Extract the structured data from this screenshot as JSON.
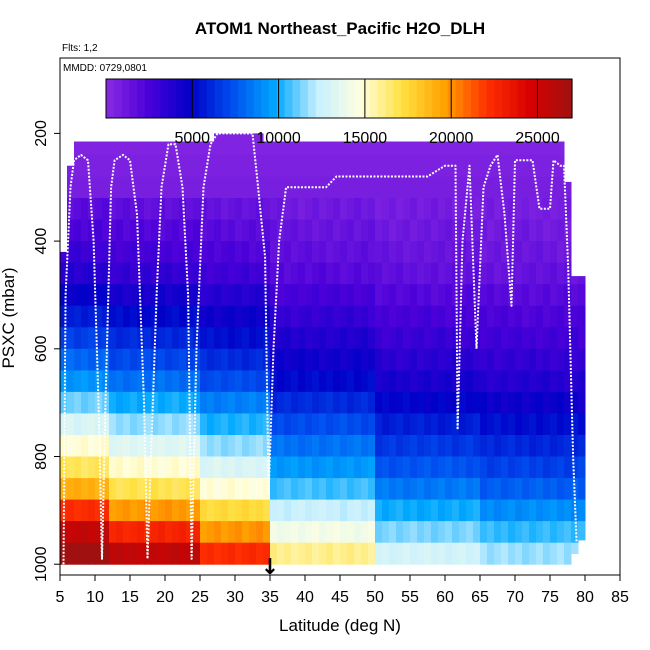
{
  "chart_data": {
    "type": "heatmap",
    "title": "ATOM1 Northeast_Pacific H2O_DLH",
    "flights_label": "Flts: 1,2",
    "dates_label": "MMDD: 0729,0801",
    "xlabel": "Latitude (deg N)",
    "ylabel": "PSXC (mbar)",
    "xlim": [
      5,
      85
    ],
    "ylim": [
      1020,
      60
    ],
    "x_ticks": [
      "5",
      "10",
      "15",
      "20",
      "25",
      "30",
      "35",
      "40",
      "45",
      "50",
      "55",
      "60",
      "65",
      "70",
      "75",
      "80",
      "85"
    ],
    "y_ticks": [
      "200",
      "400",
      "600",
      "800",
      "1000"
    ],
    "colorbar": {
      "range": [
        0,
        27000
      ],
      "ticks": [
        "5000",
        "10000",
        "15000",
        "20000",
        "25000"
      ],
      "colors": [
        "#8a2be2",
        "#4b00d9",
        "#0000c8",
        "#0050f0",
        "#00a8ff",
        "#c8f0ff",
        "#ffffe0",
        "#ffe040",
        "#ffa000",
        "#ff3000",
        "#d80000",
        "#a01010"
      ]
    },
    "marker": {
      "label": "↓",
      "latitude": 35
    },
    "flight_track": [
      [
        5.5,
        1000
      ],
      [
        5.8,
        500
      ],
      [
        6.5,
        300
      ],
      [
        7,
        250
      ],
      [
        8,
        240
      ],
      [
        9,
        250
      ],
      [
        9.8,
        400
      ],
      [
        10.5,
        700
      ],
      [
        11,
        990
      ],
      [
        11.5,
        700
      ],
      [
        12.3,
        300
      ],
      [
        12.8,
        250
      ],
      [
        14,
        240
      ],
      [
        15,
        250
      ],
      [
        16,
        350
      ],
      [
        17,
        700
      ],
      [
        17.5,
        990
      ],
      [
        18,
        800
      ],
      [
        18.8,
        500
      ],
      [
        19.5,
        300
      ],
      [
        20.5,
        220
      ],
      [
        21.5,
        220
      ],
      [
        22.5,
        300
      ],
      [
        23.3,
        500
      ],
      [
        23.8,
        990
      ],
      [
        24.5,
        600
      ],
      [
        25.5,
        300
      ],
      [
        26.5,
        220
      ],
      [
        27.5,
        200
      ],
      [
        30,
        200
      ],
      [
        32.5,
        200
      ],
      [
        33.3,
        300
      ],
      [
        34.3,
        430
      ],
      [
        34.8,
        870
      ],
      [
        35.5,
        600
      ],
      [
        36.3,
        400
      ],
      [
        37.3,
        300
      ],
      [
        40,
        300
      ],
      [
        43,
        300
      ],
      [
        44.5,
        280
      ],
      [
        50,
        280
      ],
      [
        55,
        280
      ],
      [
        57.5,
        280
      ],
      [
        60,
        260
      ],
      [
        61.5,
        260
      ],
      [
        61.8,
        750
      ],
      [
        62.5,
        400
      ],
      [
        63.5,
        260
      ],
      [
        64.5,
        600
      ],
      [
        65.5,
        300
      ],
      [
        66.5,
        260
      ],
      [
        67.5,
        240
      ],
      [
        68.5,
        350
      ],
      [
        69.5,
        520
      ],
      [
        70,
        250
      ],
      [
        71,
        250
      ],
      [
        72.5,
        250
      ],
      [
        73.5,
        340
      ],
      [
        75,
        340
      ],
      [
        75.5,
        250
      ],
      [
        76.5,
        260
      ],
      [
        77,
        260
      ],
      [
        77.6,
        450
      ],
      [
        78.3,
        800
      ],
      [
        78.8,
        960
      ]
    ]
  }
}
